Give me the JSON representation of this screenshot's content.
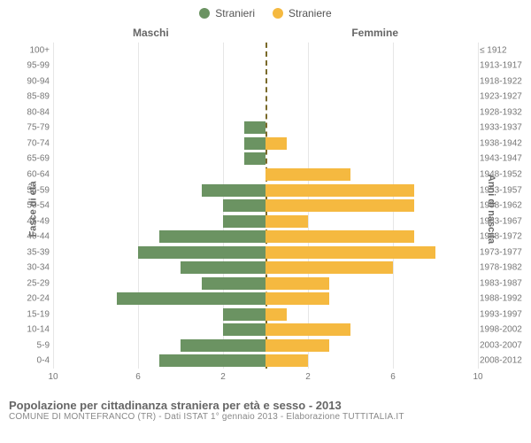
{
  "legend": {
    "male": {
      "label": "Stranieri",
      "color": "#6b9362"
    },
    "female": {
      "label": "Straniere",
      "color": "#f5b940"
    }
  },
  "columns": {
    "left": "Maschi",
    "right": "Femmine"
  },
  "axes": {
    "y_left_label": "Fasce di età",
    "y_right_label": "Anni di nascita",
    "x_max": 10,
    "x_ticks": [
      10,
      6,
      2,
      2,
      6,
      10
    ],
    "x_tick_positions_pct": [
      0,
      20,
      40,
      60,
      80,
      100
    ]
  },
  "styling": {
    "grid_color": "#e6e6e6",
    "center_line_color": "#7a6a2a",
    "background": "#ffffff",
    "bar_height_pct": 80,
    "font_family": "Arial, Helvetica, sans-serif",
    "label_color": "#777777",
    "title_color": "#666666"
  },
  "rows": [
    {
      "age": "100+",
      "birth": "≤ 1912",
      "m": 0,
      "f": 0
    },
    {
      "age": "95-99",
      "birth": "1913-1917",
      "m": 0,
      "f": 0
    },
    {
      "age": "90-94",
      "birth": "1918-1922",
      "m": 0,
      "f": 0
    },
    {
      "age": "85-89",
      "birth": "1923-1927",
      "m": 0,
      "f": 0
    },
    {
      "age": "80-84",
      "birth": "1928-1932",
      "m": 0,
      "f": 0
    },
    {
      "age": "75-79",
      "birth": "1933-1937",
      "m": 1,
      "f": 0
    },
    {
      "age": "70-74",
      "birth": "1938-1942",
      "m": 1,
      "f": 1
    },
    {
      "age": "65-69",
      "birth": "1943-1947",
      "m": 1,
      "f": 0
    },
    {
      "age": "60-64",
      "birth": "1948-1952",
      "m": 0,
      "f": 4
    },
    {
      "age": "55-59",
      "birth": "1953-1957",
      "m": 3,
      "f": 7
    },
    {
      "age": "50-54",
      "birth": "1958-1962",
      "m": 2,
      "f": 7
    },
    {
      "age": "45-49",
      "birth": "1963-1967",
      "m": 2,
      "f": 2
    },
    {
      "age": "40-44",
      "birth": "1968-1972",
      "m": 5,
      "f": 7
    },
    {
      "age": "35-39",
      "birth": "1973-1977",
      "m": 6,
      "f": 8
    },
    {
      "age": "30-34",
      "birth": "1978-1982",
      "m": 4,
      "f": 6
    },
    {
      "age": "25-29",
      "birth": "1983-1987",
      "m": 3,
      "f": 3
    },
    {
      "age": "20-24",
      "birth": "1988-1992",
      "m": 7,
      "f": 3
    },
    {
      "age": "15-19",
      "birth": "1993-1997",
      "m": 2,
      "f": 1
    },
    {
      "age": "10-14",
      "birth": "1998-2002",
      "m": 2,
      "f": 4
    },
    {
      "age": "5-9",
      "birth": "2003-2007",
      "m": 4,
      "f": 3
    },
    {
      "age": "0-4",
      "birth": "2008-2012",
      "m": 5,
      "f": 2
    }
  ],
  "caption": {
    "title": "Popolazione per cittadinanza straniera per età e sesso - 2013",
    "subtitle": "COMUNE DI MONTEFRANCO (TR) - Dati ISTAT 1° gennaio 2013 - Elaborazione TUTTITALIA.IT"
  },
  "chart_type": "population-pyramid"
}
